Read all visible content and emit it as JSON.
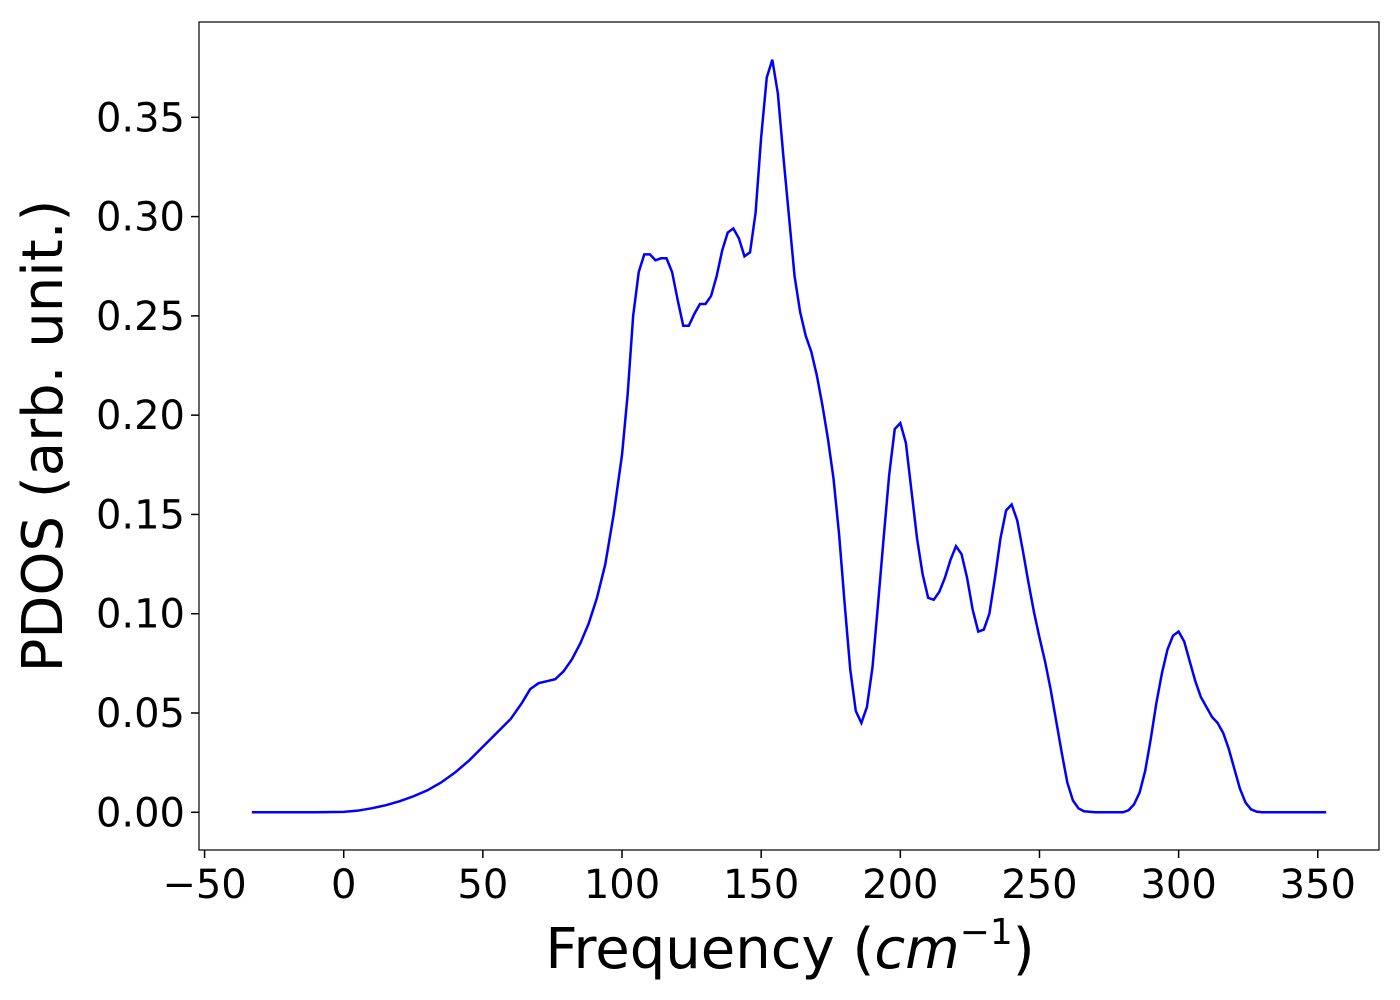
{
  "chart_data": {
    "type": "line",
    "color": "#0000ff",
    "xlabel_parts": [
      "Frequency (",
      "cm",
      "−1",
      ")"
    ],
    "ylabel": "PDOS (arb. unit.)",
    "x": [
      -33,
      -20,
      -10,
      0,
      5,
      10,
      15,
      20,
      25,
      30,
      35,
      40,
      45,
      50,
      55,
      60,
      64,
      67,
      70,
      73,
      76,
      79,
      82,
      85,
      88,
      91,
      94,
      97,
      100,
      102,
      104,
      106,
      108,
      110,
      112,
      114,
      116,
      118,
      120,
      122,
      124,
      126,
      128,
      130,
      132,
      134,
      136,
      138,
      140,
      142,
      144,
      146,
      148,
      150,
      152,
      154,
      156,
      158,
      160,
      162,
      164,
      166,
      168,
      170,
      172,
      174,
      176,
      178,
      180,
      182,
      184,
      186,
      188,
      190,
      192,
      194,
      196,
      198,
      200,
      202,
      204,
      206,
      208,
      210,
      212,
      214,
      216,
      218,
      220,
      222,
      224,
      226,
      228,
      230,
      232,
      234,
      236,
      238,
      240,
      242,
      244,
      246,
      248,
      250,
      252,
      254,
      256,
      258,
      260,
      262,
      264,
      266,
      270,
      280,
      282,
      284,
      286,
      288,
      290,
      292,
      294,
      296,
      298,
      300,
      302,
      304,
      306,
      308,
      310,
      312,
      314,
      316,
      318,
      320,
      322,
      324,
      326,
      328,
      330,
      340,
      353
    ],
    "values": [
      0,
      0,
      0,
      0.0002,
      0.0008,
      0.002,
      0.0035,
      0.0055,
      0.008,
      0.011,
      0.015,
      0.02,
      0.026,
      0.033,
      0.04,
      0.047,
      0.055,
      0.062,
      0.065,
      0.066,
      0.067,
      0.071,
      0.077,
      0.085,
      0.095,
      0.108,
      0.125,
      0.15,
      0.18,
      0.21,
      0.25,
      0.272,
      0.281,
      0.281,
      0.278,
      0.279,
      0.279,
      0.272,
      0.258,
      0.245,
      0.245,
      0.251,
      0.256,
      0.256,
      0.26,
      0.27,
      0.283,
      0.292,
      0.294,
      0.289,
      0.28,
      0.282,
      0.302,
      0.34,
      0.37,
      0.379,
      0.362,
      0.33,
      0.3,
      0.27,
      0.252,
      0.24,
      0.232,
      0.22,
      0.205,
      0.188,
      0.168,
      0.14,
      0.105,
      0.072,
      0.051,
      0.045,
      0.053,
      0.073,
      0.105,
      0.138,
      0.17,
      0.193,
      0.196,
      0.186,
      0.162,
      0.138,
      0.12,
      0.108,
      0.107,
      0.111,
      0.118,
      0.127,
      0.134,
      0.13,
      0.118,
      0.102,
      0.091,
      0.092,
      0.1,
      0.118,
      0.138,
      0.152,
      0.155,
      0.147,
      0.132,
      0.116,
      0.101,
      0.088,
      0.076,
      0.062,
      0.046,
      0.03,
      0.015,
      0.006,
      0.002,
      0.0005,
      0,
      0,
      0.001,
      0.004,
      0.01,
      0.021,
      0.037,
      0.055,
      0.07,
      0.082,
      0.089,
      0.091,
      0.086,
      0.076,
      0.066,
      0.058,
      0.053,
      0.048,
      0.045,
      0.04,
      0.032,
      0.022,
      0.012,
      0.005,
      0.0015,
      0.0003,
      0,
      0,
      0
    ],
    "xlim": [
      -52,
      372
    ],
    "ylim": [
      -0.019,
      0.398
    ],
    "xticks": [
      {
        "value": -50,
        "label": "−50"
      },
      0,
      50,
      100,
      150,
      200,
      250,
      300,
      350
    ],
    "yticks": [
      {
        "value": 0,
        "label": "0.00"
      },
      {
        "value": 0.05,
        "label": "0.05"
      },
      {
        "value": 0.1,
        "label": "0.10"
      },
      {
        "value": 0.15,
        "label": "0.15"
      },
      {
        "value": 0.2,
        "label": "0.20"
      },
      {
        "value": 0.25,
        "label": "0.25"
      },
      {
        "value": 0.3,
        "label": "0.30"
      },
      {
        "value": 0.35,
        "label": "0.35"
      }
    ],
    "grid": false
  }
}
